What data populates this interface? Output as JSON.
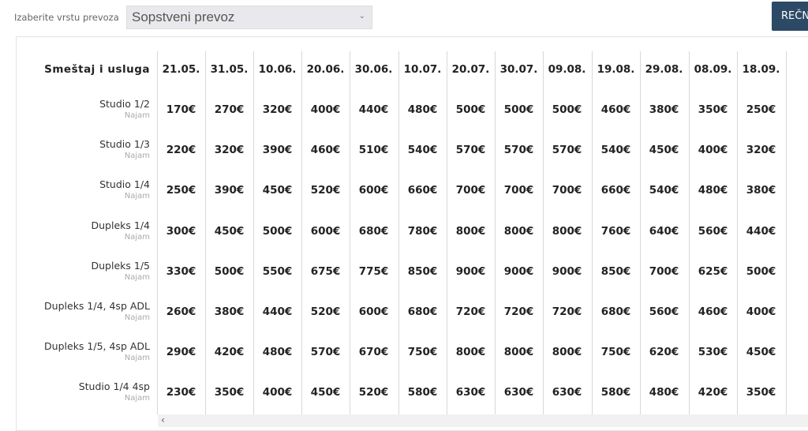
{
  "transport": {
    "label": "Izaberite vrstu prevoza",
    "selected": "Sopstveni prevoz"
  },
  "calc_button": "REČN",
  "table": {
    "header": "Smeštaj i usluga",
    "dates": [
      "21.05.",
      "31.05.",
      "10.06.",
      "20.06.",
      "30.06.",
      "10.07.",
      "20.07.",
      "30.07.",
      "09.08.",
      "19.08.",
      "29.08.",
      "08.09.",
      "18.09."
    ],
    "rows": [
      {
        "name": "Studio 1/2",
        "sub": "Najam",
        "prices": [
          "170€",
          "270€",
          "320€",
          "400€",
          "440€",
          "480€",
          "500€",
          "500€",
          "500€",
          "460€",
          "380€",
          "350€",
          "250€"
        ]
      },
      {
        "name": "Studio 1/3",
        "sub": "Najam",
        "prices": [
          "220€",
          "320€",
          "390€",
          "460€",
          "510€",
          "540€",
          "570€",
          "570€",
          "570€",
          "540€",
          "450€",
          "400€",
          "320€"
        ]
      },
      {
        "name": "Studio 1/4",
        "sub": "Najam",
        "prices": [
          "250€",
          "390€",
          "450€",
          "520€",
          "600€",
          "660€",
          "700€",
          "700€",
          "700€",
          "660€",
          "540€",
          "480€",
          "380€"
        ]
      },
      {
        "name": "Dupleks 1/4",
        "sub": "Najam",
        "prices": [
          "300€",
          "450€",
          "500€",
          "600€",
          "680€",
          "780€",
          "800€",
          "800€",
          "800€",
          "760€",
          "640€",
          "560€",
          "440€"
        ]
      },
      {
        "name": "Dupleks 1/5",
        "sub": "Najam",
        "prices": [
          "330€",
          "500€",
          "550€",
          "675€",
          "775€",
          "850€",
          "900€",
          "900€",
          "900€",
          "850€",
          "700€",
          "625€",
          "500€"
        ]
      },
      {
        "name": "Dupleks 1/4, 4sp ADL",
        "sub": "Najam",
        "prices": [
          "260€",
          "380€",
          "440€",
          "520€",
          "600€",
          "680€",
          "720€",
          "720€",
          "720€",
          "680€",
          "560€",
          "460€",
          "400€"
        ]
      },
      {
        "name": "Dupleks 1/5, 4sp ADL",
        "sub": "Najam",
        "prices": [
          "290€",
          "420€",
          "480€",
          "570€",
          "670€",
          "750€",
          "800€",
          "800€",
          "800€",
          "750€",
          "620€",
          "530€",
          "450€"
        ]
      },
      {
        "name": "Studio 1/4 4sp",
        "sub": "Najam",
        "prices": [
          "230€",
          "350€",
          "400€",
          "450€",
          "520€",
          "580€",
          "630€",
          "630€",
          "630€",
          "580€",
          "480€",
          "420€",
          "350€"
        ]
      }
    ]
  },
  "scroll_left_icon": "‹"
}
